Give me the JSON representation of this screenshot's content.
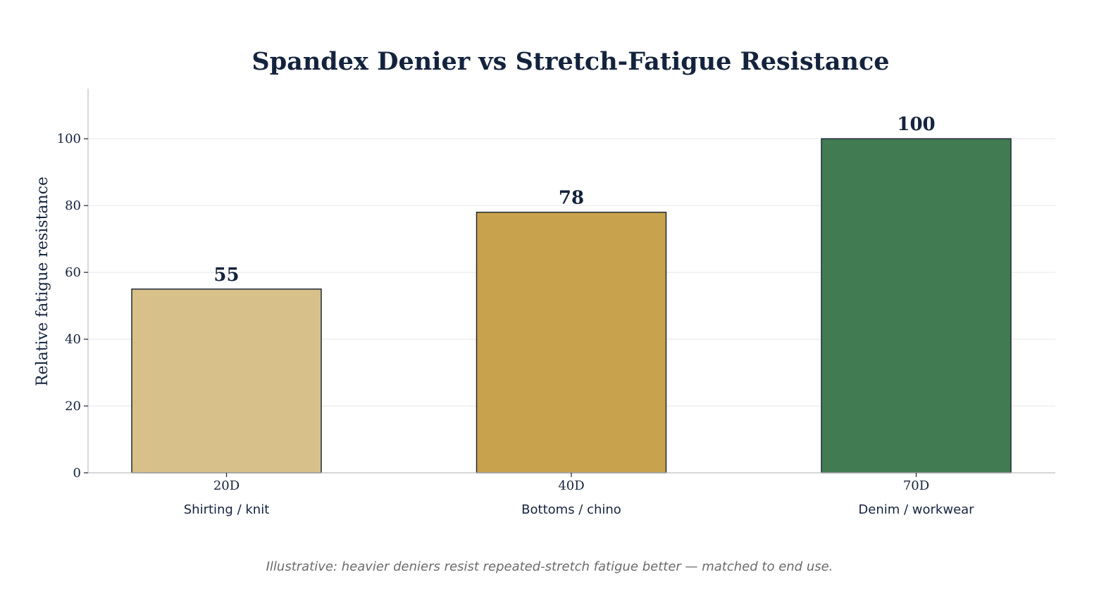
{
  "chart_data": {
    "type": "bar",
    "title": "Spandex Denier vs Stretch-Fatigue Resistance",
    "xlabel": "",
    "ylabel": "Relative fatigue resistance",
    "categories": [
      "20D",
      "40D",
      "70D"
    ],
    "category_sublabels": [
      "Shirting / knit",
      "Bottoms / chino",
      "Denim / workwear"
    ],
    "values": [
      55,
      78,
      100
    ],
    "value_labels": [
      "55",
      "78",
      "100"
    ],
    "bar_colors": [
      "#d8c08a",
      "#c8a24c",
      "#417b52"
    ],
    "ylim": [
      0,
      115
    ],
    "yticks": [
      0,
      20,
      40,
      60,
      80,
      100
    ],
    "ytick_labels": [
      "0",
      "20",
      "40",
      "60",
      "80",
      "100"
    ],
    "grid": true,
    "legend": "none",
    "footnote": "Illustrative: heavier deniers resist repeated-stretch fatigue better — matched to end use."
  }
}
